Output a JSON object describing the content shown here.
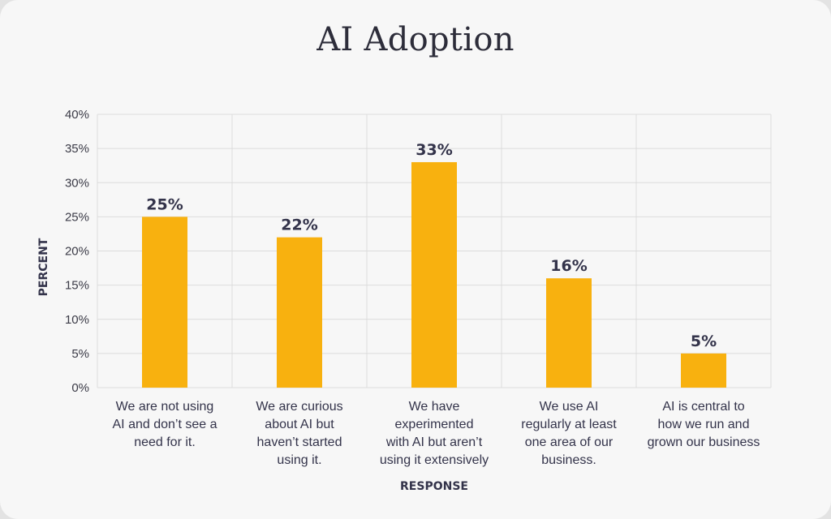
{
  "chart_data": {
    "type": "bar",
    "title": "AI Adoption",
    "xlabel": "RESPONSE",
    "ylabel": "PERCENT",
    "ylim": [
      0,
      40
    ],
    "yticks": [
      0,
      5,
      10,
      15,
      20,
      25,
      30,
      35,
      40
    ],
    "ytick_labels": [
      "0%",
      "5%",
      "10%",
      "15%",
      "20%",
      "25%",
      "30%",
      "35%",
      "40%"
    ],
    "grid": true,
    "categories": [
      [
        "We are not using",
        "AI and don’t see a",
        "need for it."
      ],
      [
        "We are curious",
        "about AI but",
        "haven’t started",
        "using it."
      ],
      [
        "We have",
        "experimented",
        "with AI but aren’t",
        "using it extensively"
      ],
      [
        "We use AI",
        "regularly at least",
        "one area of our",
        "business."
      ],
      [
        "AI is central to",
        "how we run and",
        "grown our business"
      ]
    ],
    "values": [
      25,
      22,
      33,
      16,
      5
    ],
    "data_labels": [
      "25%",
      "22%",
      "33%",
      "16%",
      "5%"
    ],
    "bar_color": "#f8b10f",
    "grid_color": "#dcdcdc"
  }
}
